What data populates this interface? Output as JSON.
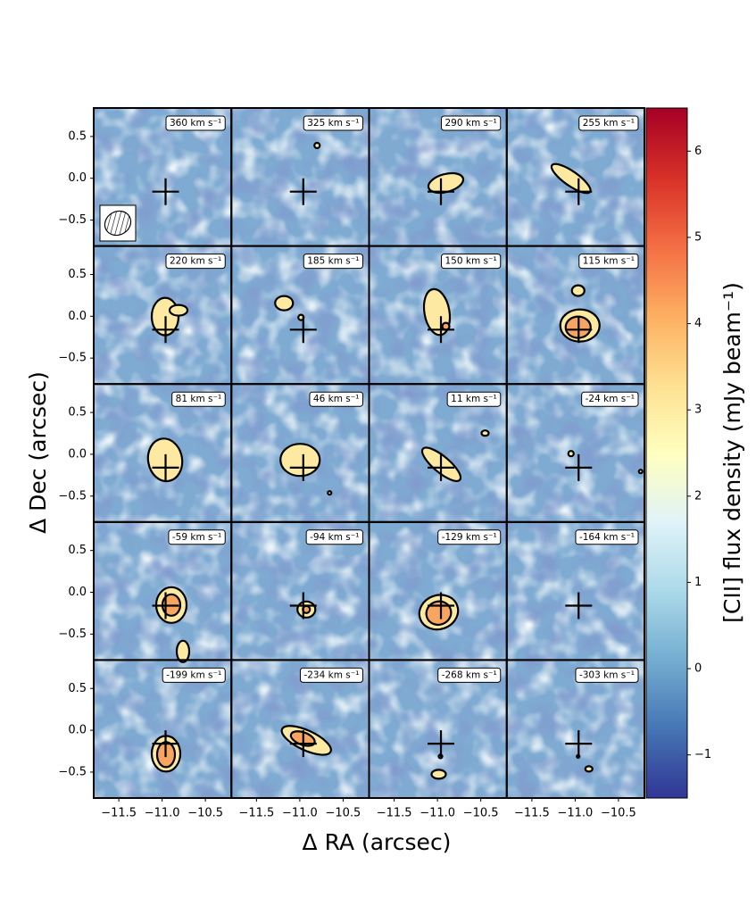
{
  "figure": {
    "panels": [
      {
        "label": "360 km s⁻¹"
      },
      {
        "label": "325 km s⁻¹"
      },
      {
        "label": "290 km s⁻¹"
      },
      {
        "label": "255 km s⁻¹"
      },
      {
        "label": "220 km s⁻¹"
      },
      {
        "label": "185 km s⁻¹"
      },
      {
        "label": "150 km s⁻¹"
      },
      {
        "label": "115 km s⁻¹"
      },
      {
        "label": "81 km s⁻¹"
      },
      {
        "label": "46 km s⁻¹"
      },
      {
        "label": "11 km s⁻¹"
      },
      {
        "label": "-24 km s⁻¹"
      },
      {
        "label": "-59 km s⁻¹"
      },
      {
        "label": "-94 km s⁻¹"
      },
      {
        "label": "-129 km s⁻¹"
      },
      {
        "label": "-164 km s⁻¹"
      },
      {
        "label": "-199 km s⁻¹"
      },
      {
        "label": "-234 km s⁻¹"
      },
      {
        "label": "-268 km s⁻¹"
      },
      {
        "label": "-303 km s⁻¹"
      }
    ],
    "xlabel": "Δ RA (arcsec)",
    "ylabel": "Δ Dec (arcsec)",
    "xlim": [
      -11.79,
      -10.2
    ],
    "ylim": [
      -0.81,
      0.84
    ],
    "xticks": [
      {
        "value": -11.5,
        "label": "−11.5"
      },
      {
        "value": -11.0,
        "label": "−11.0"
      },
      {
        "value": -10.5,
        "label": "−10.5"
      }
    ],
    "yticks": [
      0.5,
      {
        "value": 0,
        "label": "0.0"
      },
      {
        "value": -0.5,
        "label": "−0.5"
      }
    ],
    "marker": {
      "x": -10.96,
      "y": -0.16
    },
    "colorbar": {
      "label": "[CII] flux density (mJy beam⁻¹)",
      "lim": [
        -1.5,
        6.5
      ],
      "ticks": [
        {
          "value": -1,
          "label": "−1"
        },
        0,
        1,
        2,
        3,
        4,
        5,
        6
      ],
      "colors": [
        "#313695",
        "#4575b4",
        "#74add1",
        "#abd9e9",
        "#e0f3f8",
        "#ffffbf",
        "#fee090",
        "#fdae61",
        "#f46d43",
        "#d73027",
        "#a50026"
      ]
    }
  }
}
